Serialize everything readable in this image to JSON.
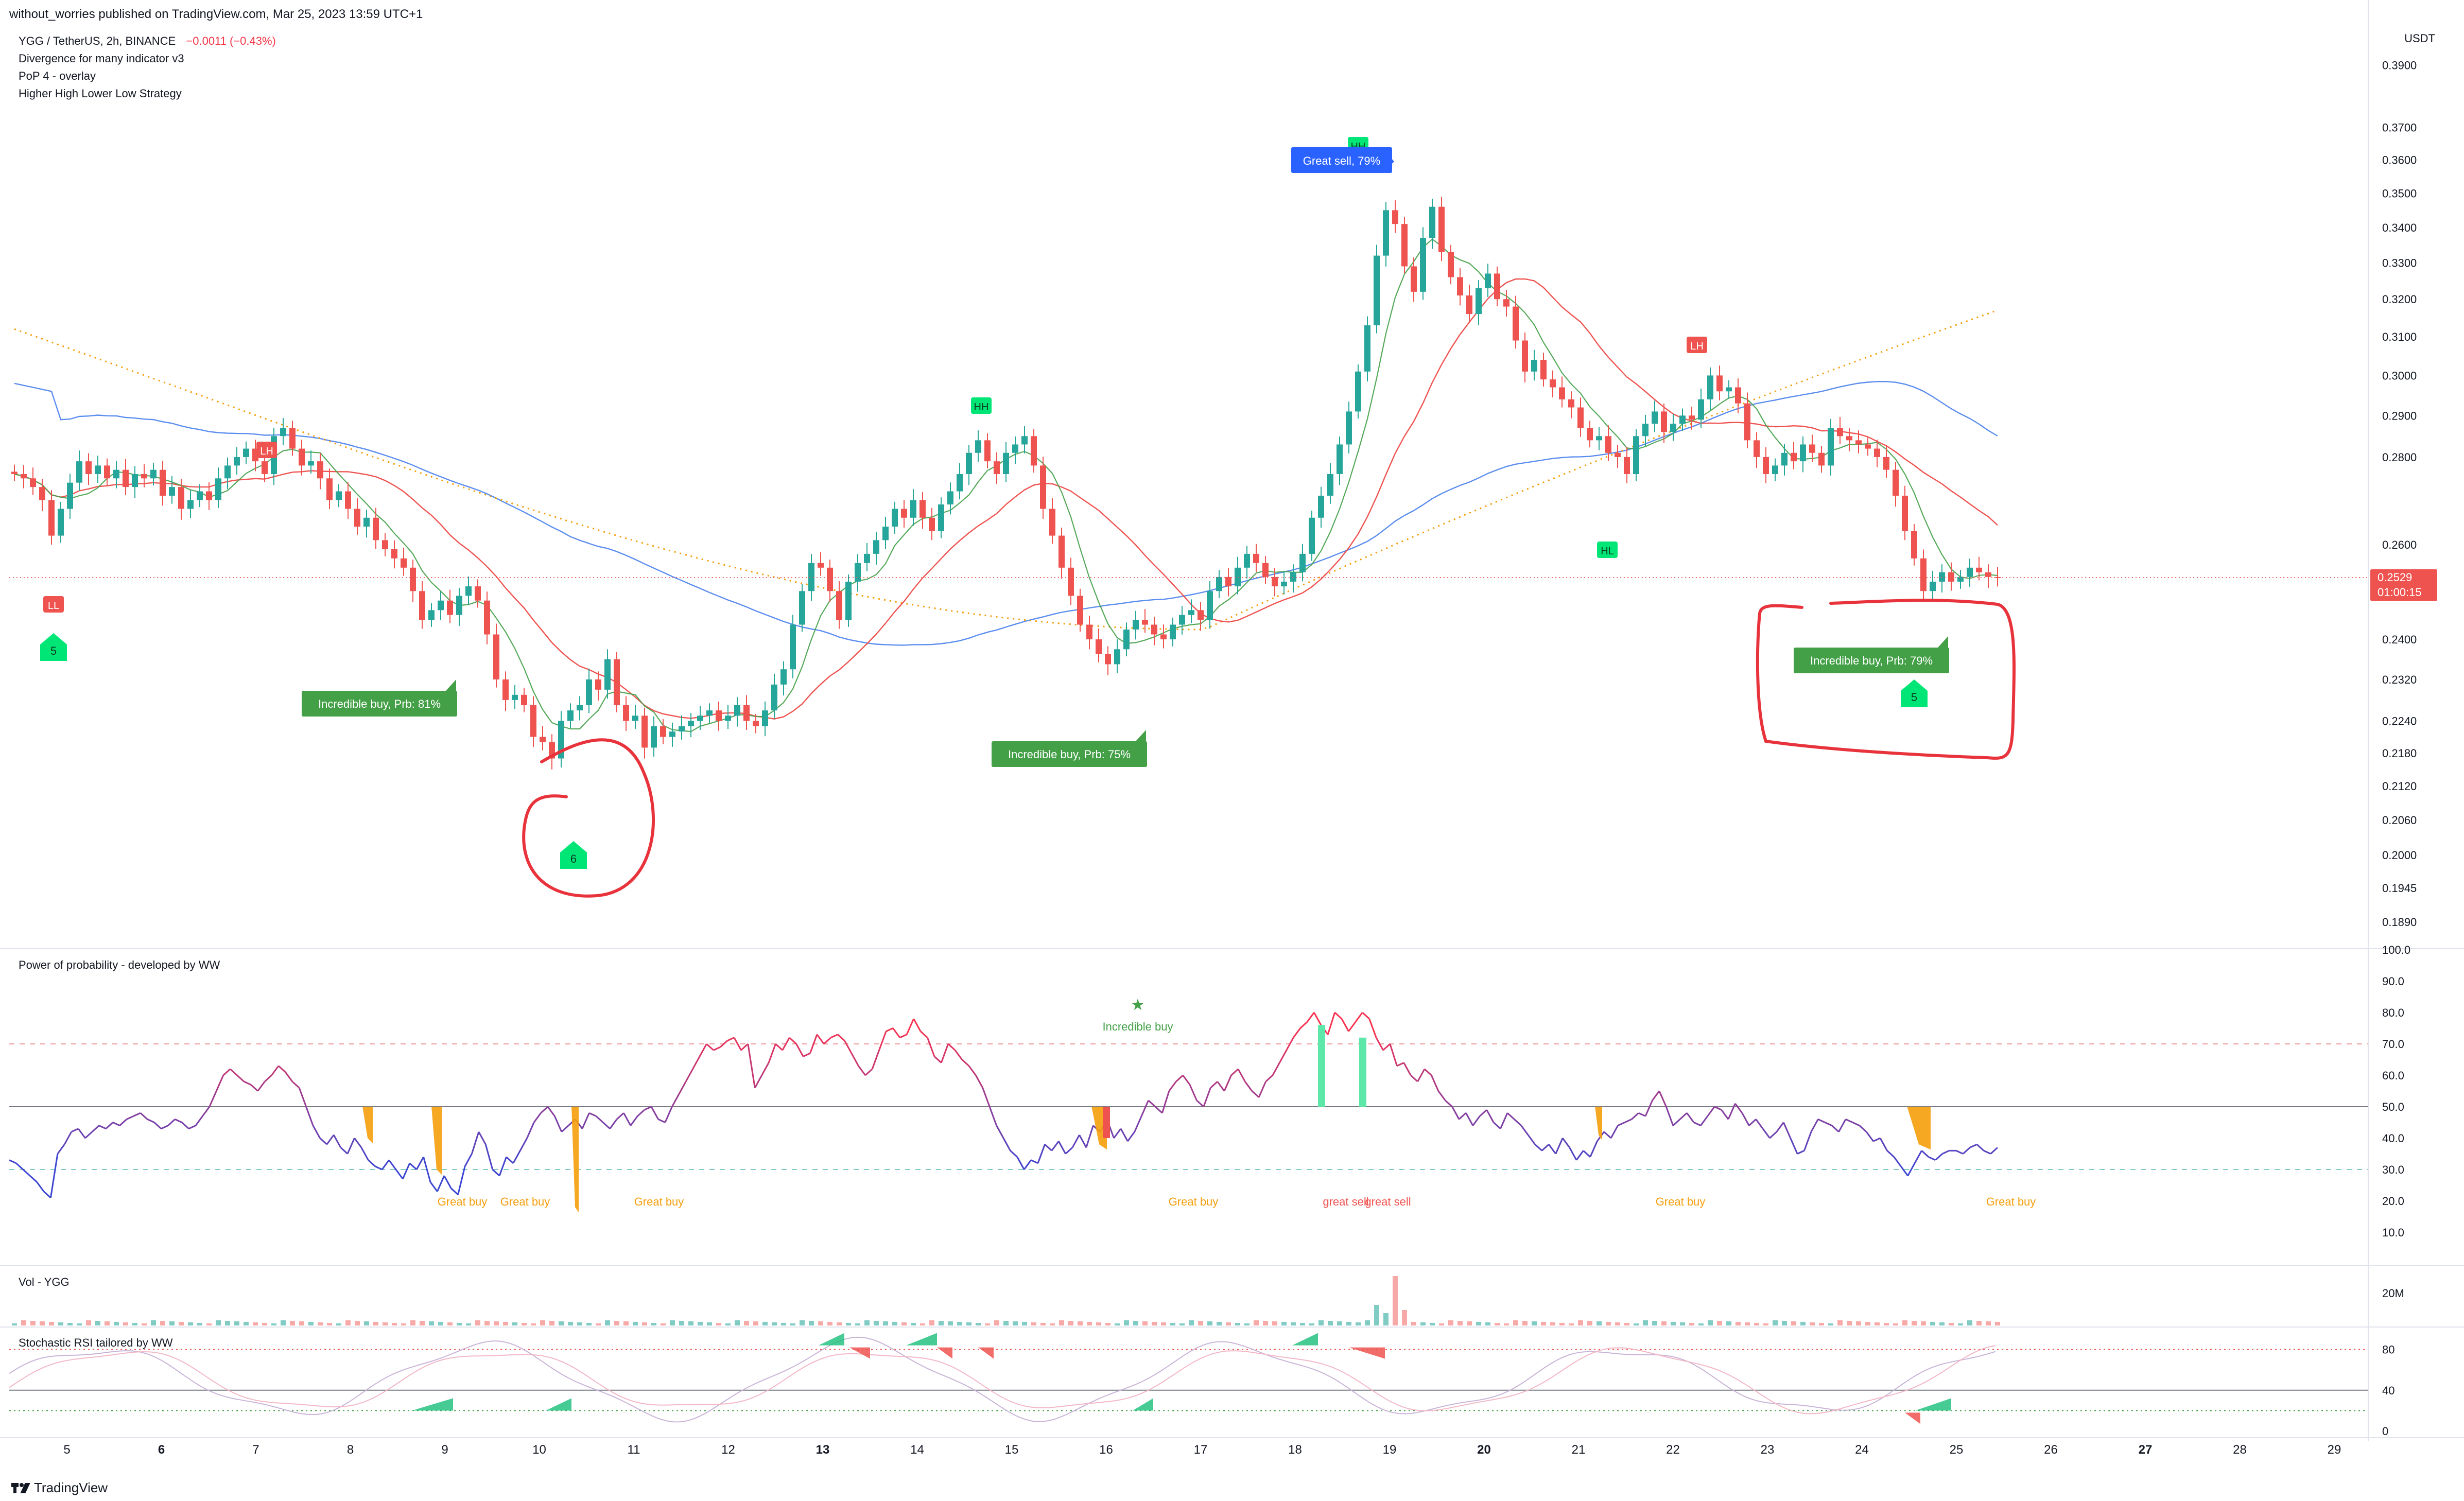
{
  "published": "without_worries published on TradingView.com, Mar 25, 2023 13:59 UTC+1",
  "symbol_line": "YGG / TetherUS, 2h, BINANCE",
  "change": "−0.0011 (−0.43%)",
  "indicators": [
    "Divergence for many indicator v3",
    "PoP 4 - overlay",
    "Higher High Lower Low Strategy"
  ],
  "currency": "USDT",
  "brand": "TradingView",
  "colors": {
    "up": "#26a69a",
    "down": "#ef5350",
    "annotation": "#e8333c",
    "ema_blue": "#5b8def",
    "ema_red": "#ef5350",
    "ema_orange": "#f59e0b",
    "green_label": "#43a047",
    "blue_label": "#2962ff",
    "marker_green": "#00e676"
  },
  "chart_data": [
    {
      "type": "candlestick",
      "title": "YGG / TetherUS, 2h, BINANCE",
      "ylim": [
        0.185,
        0.405
      ],
      "log_scale": true,
      "y_ticks": [
        "0.3900",
        "0.3700",
        "0.3600",
        "0.3500",
        "0.3400",
        "0.3300",
        "0.3200",
        "0.3100",
        "0.3000",
        "0.2900",
        "0.2800",
        "0.2600",
        "0.2529",
        "0.2400",
        "0.2320",
        "0.2240",
        "0.2180",
        "0.2120",
        "0.2060",
        "0.2000",
        "0.1945",
        "0.1890"
      ],
      "last_price": "0.2529",
      "countdown": "01:00:15",
      "x_ticks": [
        "5",
        "6",
        "7",
        "8",
        "9",
        "10",
        "11",
        "12",
        "13",
        "14",
        "15",
        "16",
        "17",
        "18",
        "19",
        "20",
        "21",
        "22",
        "23",
        "24",
        "25",
        "26",
        "27",
        "28",
        "29"
      ],
      "x_tick_bold": [
        "6",
        "13",
        "20",
        "27"
      ],
      "close_series": [
        0.276,
        0.275,
        0.273,
        0.27,
        0.262,
        0.268,
        0.274,
        0.279,
        0.276,
        0.278,
        0.275,
        0.277,
        0.273,
        0.276,
        0.275,
        0.277,
        0.271,
        0.273,
        0.268,
        0.27,
        0.272,
        0.27,
        0.275,
        0.278,
        0.28,
        0.282,
        0.279,
        0.276,
        0.285,
        0.287,
        0.282,
        0.278,
        0.279,
        0.275,
        0.27,
        0.272,
        0.268,
        0.264,
        0.266,
        0.261,
        0.259,
        0.257,
        0.255,
        0.25,
        0.244,
        0.246,
        0.248,
        0.245,
        0.249,
        0.251,
        0.248,
        0.241,
        0.232,
        0.228,
        0.229,
        0.227,
        0.221,
        0.22,
        0.217,
        0.224,
        0.226,
        0.227,
        0.232,
        0.23,
        0.236,
        0.227,
        0.224,
        0.225,
        0.219,
        0.223,
        0.221,
        0.222,
        0.223,
        0.224,
        0.225,
        0.226,
        0.224,
        0.225,
        0.227,
        0.224,
        0.223,
        0.226,
        0.231,
        0.234,
        0.243,
        0.25,
        0.256,
        0.255,
        0.25,
        0.244,
        0.252,
        0.256,
        0.258,
        0.261,
        0.264,
        0.268,
        0.266,
        0.27,
        0.266,
        0.263,
        0.269,
        0.272,
        0.276,
        0.281,
        0.284,
        0.279,
        0.276,
        0.281,
        0.283,
        0.285,
        0.278,
        0.268,
        0.262,
        0.255,
        0.249,
        0.243,
        0.24,
        0.237,
        0.235,
        0.238,
        0.242,
        0.244,
        0.243,
        0.241,
        0.24,
        0.243,
        0.245,
        0.246,
        0.244,
        0.25,
        0.253,
        0.251,
        0.255,
        0.258,
        0.256,
        0.253,
        0.251,
        0.252,
        0.254,
        0.258,
        0.266,
        0.271,
        0.276,
        0.283,
        0.291,
        0.301,
        0.313,
        0.332,
        0.345,
        0.341,
        0.329,
        0.322,
        0.337,
        0.346,
        0.333,
        0.326,
        0.321,
        0.316,
        0.323,
        0.327,
        0.32,
        0.318,
        0.309,
        0.301,
        0.304,
        0.299,
        0.297,
        0.294,
        0.292,
        0.287,
        0.284,
        0.285,
        0.281,
        0.28,
        0.276,
        0.285,
        0.288,
        0.291,
        0.286,
        0.288,
        0.29,
        0.289,
        0.294,
        0.3,
        0.296,
        0.297,
        0.293,
        0.284,
        0.28,
        0.276,
        0.278,
        0.281,
        0.279,
        0.283,
        0.281,
        0.278,
        0.287,
        0.285,
        0.284,
        0.283,
        0.282,
        0.28,
        0.277,
        0.271,
        0.263,
        0.257,
        0.25,
        0.252,
        0.254,
        0.252,
        0.253,
        0.255,
        0.254,
        0.253,
        0.2529
      ],
      "series": [
        {
          "name": "Power of probability",
          "values": [
            33,
            32,
            30,
            28,
            26,
            23,
            21,
            35,
            38,
            42,
            43,
            40,
            42,
            44,
            43,
            45,
            44,
            46,
            47,
            48,
            46,
            45,
            43,
            44,
            46,
            45,
            43,
            44,
            47,
            50,
            55,
            60,
            62,
            60,
            58,
            57,
            55,
            58,
            60,
            63,
            61,
            58,
            56,
            50,
            44,
            40,
            38,
            41,
            37,
            35,
            40,
            37,
            33,
            31,
            30,
            33,
            30,
            27,
            32,
            30,
            34,
            26,
            23,
            28,
            24,
            22,
            31,
            35,
            42,
            38,
            30,
            28,
            34,
            32,
            36,
            40,
            45,
            48,
            50,
            47,
            42,
            44,
            46,
            43,
            48,
            47,
            45,
            43,
            46,
            48,
            44,
            47,
            49,
            50,
            46,
            45,
            50,
            54,
            58,
            62,
            66,
            70,
            68,
            69,
            71,
            72,
            68,
            70,
            56,
            60,
            64,
            70,
            68,
            72,
            70,
            66,
            67,
            73,
            70,
            72,
            73,
            71,
            67,
            63,
            60,
            62,
            68,
            74,
            75,
            72,
            73,
            78,
            74,
            72,
            66,
            64,
            70,
            68,
            65,
            63,
            60,
            56,
            50,
            44,
            40,
            36,
            34,
            30,
            33,
            32,
            38,
            36,
            39,
            35,
            37,
            41,
            37,
            44,
            42,
            46,
            40,
            43,
            39,
            42,
            47,
            52,
            50,
            48,
            55,
            58,
            60,
            57,
            52,
            50,
            56,
            58,
            55,
            60,
            62,
            58,
            55,
            53,
            58,
            60,
            64,
            68,
            72,
            75,
            77,
            80,
            76,
            73,
            80,
            78,
            74,
            77,
            80,
            78,
            72,
            68,
            70,
            63,
            64,
            60,
            58,
            62,
            60,
            55,
            52,
            50,
            46,
            48,
            44,
            47,
            49,
            45,
            43,
            48,
            46,
            44,
            41,
            38,
            36,
            38,
            35,
            40,
            37,
            33,
            36,
            34,
            39,
            42,
            40,
            44,
            45,
            46,
            48,
            47,
            52,
            55,
            50,
            44,
            46,
            48,
            45,
            44,
            47,
            50,
            49,
            46,
            51,
            48,
            44,
            46,
            43,
            40,
            42,
            45,
            40,
            35,
            36,
            42,
            46,
            45,
            44,
            42,
            46,
            45,
            44,
            42,
            39,
            40,
            36,
            34,
            31,
            28,
            32,
            36,
            34,
            33,
            35,
            36,
            36,
            35,
            37,
            38,
            36,
            35,
            37
          ]
        },
        {
          "name": "Vol - YGG",
          "values": []
        },
        {
          "name": "Stochastic RSI tailored by WW",
          "values": []
        }
      ]
    },
    {
      "type": "line",
      "title": "Power of probability - developed by WW",
      "ylim": [
        0,
        100
      ],
      "y_ticks": [
        "100.0",
        "90.0",
        "80.0",
        "70.0",
        "60.0",
        "50.0",
        "40.0",
        "30.0",
        "20.0",
        "10.0"
      ],
      "levels": [
        70,
        50,
        30
      ]
    },
    {
      "type": "bar",
      "title": "Vol - YGG",
      "y_ticks": [
        "20M"
      ]
    },
    {
      "type": "line",
      "title": "Stochastic RSI tailored by WW",
      "ylim": [
        0,
        100
      ],
      "y_ticks": [
        "80",
        "40",
        "0"
      ],
      "levels": [
        80,
        40,
        20
      ]
    }
  ],
  "annotations": {
    "labels_main": [
      {
        "text": "Incredible buy, Prb: 81%",
        "kind": "green"
      },
      {
        "text": "Incredible buy, Prb: 75%",
        "kind": "green"
      },
      {
        "text": "Incredible buy, Prb: 79%",
        "kind": "green"
      },
      {
        "text": "Great sell, 79%",
        "kind": "blue"
      }
    ],
    "swing_tags": [
      {
        "text": "LH",
        "kind": "red"
      },
      {
        "text": "LL",
        "kind": "red"
      },
      {
        "text": "HH",
        "kind": "green"
      },
      {
        "text": "LH",
        "kind": "red"
      },
      {
        "text": "HL",
        "kind": "green"
      },
      {
        "text": "HH",
        "kind": "green"
      }
    ],
    "pentagon_markers": [
      "5",
      "6",
      "5"
    ],
    "pop_texts": [
      {
        "text": "Great buy",
        "color": "#f59e0b"
      },
      {
        "text": "Great buy",
        "color": "#f59e0b"
      },
      {
        "text": "Great buy",
        "color": "#f59e0b"
      },
      {
        "text": "Great buy",
        "color": "#f59e0b"
      },
      {
        "text": "great sell",
        "color": "#ef5350"
      },
      {
        "text": "great sell",
        "color": "#ef5350"
      },
      {
        "text": "Great buy",
        "color": "#f59e0b"
      },
      {
        "text": "Great buy",
        "color": "#f59e0b"
      }
    ],
    "incredible_buy_star": "★",
    "incredible_buy_text": "Incredible buy"
  }
}
